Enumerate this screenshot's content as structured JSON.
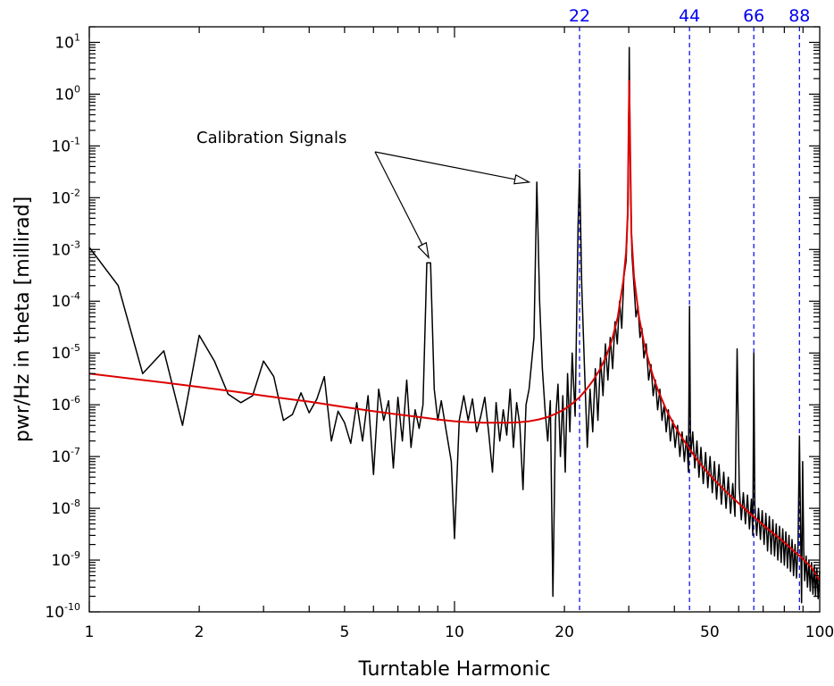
{
  "chart_data": {
    "type": "line",
    "xlabel": "Turntable Harmonic",
    "ylabel": "pwr/Hz in theta [millirad]",
    "x_scale": "log",
    "y_scale": "log",
    "xlim": [
      1,
      100
    ],
    "ylim": [
      1e-10,
      20
    ],
    "x_ticks": [
      {
        "value": 1,
        "label": "1"
      },
      {
        "value": 2,
        "label": "2"
      },
      {
        "value": 5,
        "label": "5"
      },
      {
        "value": 10,
        "label": "10"
      },
      {
        "value": 20,
        "label": "20"
      },
      {
        "value": 50,
        "label": "50"
      },
      {
        "value": 100,
        "label": "100"
      }
    ],
    "y_ticks": [
      {
        "value": 1e-10,
        "base": "10",
        "exp": "-10"
      },
      {
        "value": 1e-09,
        "base": "10",
        "exp": "-9"
      },
      {
        "value": 1e-08,
        "base": "10",
        "exp": "-8"
      },
      {
        "value": 1e-07,
        "base": "10",
        "exp": "-7"
      },
      {
        "value": 1e-06,
        "base": "10",
        "exp": "-6"
      },
      {
        "value": 1e-05,
        "base": "10",
        "exp": "-5"
      },
      {
        "value": 0.0001,
        "base": "10",
        "exp": "-4"
      },
      {
        "value": 0.001,
        "base": "10",
        "exp": "-3"
      },
      {
        "value": 0.01,
        "base": "10",
        "exp": "-2"
      },
      {
        "value": 0.1,
        "base": "10",
        "exp": "-1"
      },
      {
        "value": 1,
        "base": "10",
        "exp": "0"
      },
      {
        "value": 10,
        "base": "10",
        "exp": "1"
      }
    ],
    "vertical_lines": [
      {
        "x": 22,
        "label": "22",
        "color": "#0000ee"
      },
      {
        "x": 44,
        "label": "44",
        "color": "#0000ee"
      },
      {
        "x": 66,
        "label": "66",
        "color": "#0000ee"
      },
      {
        "x": 88,
        "label": "88",
        "color": "#0000ee"
      }
    ],
    "annotation": {
      "text": "Calibration Signals",
      "arrows_to": [
        {
          "x": 8.5,
          "y": 0.0007
        },
        {
          "x": 16,
          "y": 0.02
        }
      ]
    },
    "series": [
      {
        "color": "#000000",
        "style": "measured",
        "points": [
          [
            1.0,
            0.0011
          ],
          [
            1.2,
            0.0002
          ],
          [
            1.4,
            4e-06
          ],
          [
            1.6,
            1.1e-05
          ],
          [
            1.8,
            4e-07
          ],
          [
            2.0,
            2.2e-05
          ],
          [
            2.2,
            7e-06
          ],
          [
            2.4,
            1.6e-06
          ],
          [
            2.6,
            1.1e-06
          ],
          [
            2.8,
            1.5e-06
          ],
          [
            3.0,
            7e-06
          ],
          [
            3.2,
            3.5e-06
          ],
          [
            3.4,
            5e-07
          ],
          [
            3.6,
            6.5e-07
          ],
          [
            3.8,
            1.7e-06
          ],
          [
            4.0,
            7e-07
          ],
          [
            4.2,
            1.3e-06
          ],
          [
            4.4,
            3.5e-06
          ],
          [
            4.6,
            2e-07
          ],
          [
            4.8,
            7.5e-07
          ],
          [
            5.0,
            4.5e-07
          ],
          [
            5.2,
            1.8e-07
          ],
          [
            5.4,
            1.1e-06
          ],
          [
            5.6,
            2e-07
          ],
          [
            5.8,
            1.5e-06
          ],
          [
            6.0,
            4.5e-08
          ],
          [
            6.2,
            2e-06
          ],
          [
            6.4,
            5e-07
          ],
          [
            6.6,
            1.2e-06
          ],
          [
            6.8,
            6e-08
          ],
          [
            7.0,
            1.4e-06
          ],
          [
            7.2,
            2e-07
          ],
          [
            7.4,
            3e-06
          ],
          [
            7.6,
            1.5e-07
          ],
          [
            7.8,
            8e-07
          ],
          [
            8.0,
            3.5e-07
          ],
          [
            8.2,
            1e-06
          ],
          [
            8.4,
            0.00055
          ],
          [
            8.6,
            0.00055
          ],
          [
            8.8,
            2e-06
          ],
          [
            9.0,
            5e-07
          ],
          [
            9.2,
            1.2e-06
          ],
          [
            9.5,
            3e-07
          ],
          [
            9.8,
            8e-08
          ],
          [
            10.0,
            2.6e-09
          ],
          [
            10.3,
            5e-07
          ],
          [
            10.6,
            1.5e-06
          ],
          [
            10.9,
            5e-07
          ],
          [
            11.2,
            1.3e-06
          ],
          [
            11.5,
            3e-07
          ],
          [
            11.8,
            6e-07
          ],
          [
            12.1,
            1.4e-06
          ],
          [
            12.4,
            3e-07
          ],
          [
            12.7,
            5e-08
          ],
          [
            13.0,
            1.1e-06
          ],
          [
            13.3,
            2e-07
          ],
          [
            13.6,
            8e-07
          ],
          [
            13.9,
            2.6e-07
          ],
          [
            14.2,
            2e-06
          ],
          [
            14.5,
            1.5e-07
          ],
          [
            14.8,
            1.1e-06
          ],
          [
            15.1,
            4e-07
          ],
          [
            15.4,
            2.3e-08
          ],
          [
            15.7,
            1e-06
          ],
          [
            16.0,
            2e-06
          ],
          [
            16.2,
            5e-06
          ],
          [
            16.5,
            2e-05
          ],
          [
            16.8,
            0.02
          ],
          [
            17.1,
            0.0001
          ],
          [
            17.4,
            5e-06
          ],
          [
            17.7,
            8e-07
          ],
          [
            18.0,
            2e-07
          ],
          [
            18.3,
            1.2e-06
          ],
          [
            18.6,
            2e-10
          ],
          [
            18.9,
            5e-07
          ],
          [
            19.2,
            2.5e-06
          ],
          [
            19.5,
            1e-07
          ],
          [
            19.8,
            1.5e-06
          ],
          [
            20.1,
            5e-08
          ],
          [
            20.4,
            4e-06
          ],
          [
            20.7,
            3e-07
          ],
          [
            21.0,
            1e-05
          ],
          [
            21.4,
            6e-07
          ],
          [
            21.8,
            0.003
          ],
          [
            22.0,
            0.035
          ],
          [
            22.3,
            0.0002
          ],
          [
            22.7,
            5e-06
          ],
          [
            23.1,
            1.5e-07
          ],
          [
            23.5,
            2e-06
          ],
          [
            23.9,
            3e-07
          ],
          [
            24.3,
            5e-06
          ],
          [
            24.7,
            5e-07
          ],
          [
            25.1,
            8e-06
          ],
          [
            25.5,
            1.5e-06
          ],
          [
            25.9,
            1.5e-05
          ],
          [
            26.3,
            3e-06
          ],
          [
            26.7,
            2e-05
          ],
          [
            27.1,
            5e-06
          ],
          [
            27.5,
            4e-05
          ],
          [
            27.9,
            1.5e-05
          ],
          [
            28.3,
            0.0001
          ],
          [
            28.7,
            3e-05
          ],
          [
            29.1,
            0.0003
          ],
          [
            29.5,
            0.0006
          ],
          [
            29.9,
            0.008
          ],
          [
            30.1,
            8.0
          ],
          [
            30.3,
            0.03
          ],
          [
            30.6,
            0.0008
          ],
          [
            31.0,
            0.0002
          ],
          [
            31.4,
            5e-05
          ],
          [
            31.8,
            8e-05
          ],
          [
            32.2,
            2e-05
          ],
          [
            32.6,
            3e-05
          ],
          [
            33.0,
            8e-06
          ],
          [
            33.5,
            1.5e-05
          ],
          [
            34.0,
            3e-06
          ],
          [
            34.5,
            6e-06
          ],
          [
            35.0,
            1.5e-06
          ],
          [
            35.5,
            3e-06
          ],
          [
            36.0,
            8e-07
          ],
          [
            36.5,
            2e-06
          ],
          [
            37.0,
            5e-07
          ],
          [
            37.5,
            1e-06
          ],
          [
            38.0,
            3e-07
          ],
          [
            38.5,
            8e-07
          ],
          [
            39.0,
            2e-07
          ],
          [
            39.6,
            5e-07
          ],
          [
            40.2,
            1.5e-07
          ],
          [
            40.8,
            4e-07
          ],
          [
            41.4,
            1e-07
          ],
          [
            42.0,
            3e-07
          ],
          [
            42.6,
            8e-08
          ],
          [
            43.2,
            2.5e-07
          ],
          [
            43.7,
            5e-08
          ],
          [
            44.0,
            8e-05
          ],
          [
            44.3,
            1e-07
          ],
          [
            44.9,
            3e-07
          ],
          [
            45.5,
            6e-08
          ],
          [
            46.1,
            2e-07
          ],
          [
            46.7,
            4e-08
          ],
          [
            47.3,
            1.5e-07
          ],
          [
            48.0,
            3e-08
          ],
          [
            48.7,
            1.2e-07
          ],
          [
            49.4,
            2.5e-08
          ],
          [
            50.1,
            1e-07
          ],
          [
            50.8,
            2e-08
          ],
          [
            51.5,
            8e-08
          ],
          [
            52.2,
            1.5e-08
          ],
          [
            53.0,
            7e-08
          ],
          [
            53.8,
            1.2e-08
          ],
          [
            54.6,
            5e-08
          ],
          [
            55.4,
            1e-08
          ],
          [
            56.2,
            4e-08
          ],
          [
            57.0,
            8e-09
          ],
          [
            57.8,
            3e-08
          ],
          [
            58.6,
            7e-09
          ],
          [
            59.4,
            1.2e-05
          ],
          [
            60.2,
            2.5e-08
          ],
          [
            61.0,
            6e-09
          ],
          [
            61.8,
            2e-08
          ],
          [
            62.6,
            5e-09
          ],
          [
            63.4,
            1.8e-08
          ],
          [
            64.2,
            4e-09
          ],
          [
            65.0,
            1.5e-08
          ],
          [
            65.6,
            3e-09
          ],
          [
            66.0,
            1e-05
          ],
          [
            66.4,
            1.2e-08
          ],
          [
            67.2,
            3e-09
          ],
          [
            68.0,
            1e-08
          ],
          [
            68.8,
            2.5e-09
          ],
          [
            69.6,
            9e-09
          ],
          [
            70.4,
            2e-09
          ],
          [
            71.2,
            8e-09
          ],
          [
            72.0,
            1.5e-09
          ],
          [
            72.8,
            7e-09
          ],
          [
            73.6,
            1.3e-09
          ],
          [
            74.4,
            6e-09
          ],
          [
            75.2,
            1.2e-09
          ],
          [
            76.0,
            5e-09
          ],
          [
            76.8,
            1e-09
          ],
          [
            77.6,
            4.5e-09
          ],
          [
            78.4,
            9e-10
          ],
          [
            79.2,
            4e-09
          ],
          [
            80.0,
            8e-10
          ],
          [
            80.8,
            3.5e-09
          ],
          [
            81.6,
            7e-10
          ],
          [
            82.4,
            3e-09
          ],
          [
            83.2,
            6e-10
          ],
          [
            84.0,
            2.5e-09
          ],
          [
            84.8,
            5e-10
          ],
          [
            85.6,
            2e-09
          ],
          [
            86.4,
            4.5e-10
          ],
          [
            87.2,
            1.8e-09
          ],
          [
            88.0,
            2.5e-07
          ],
          [
            88.6,
            5e-09
          ],
          [
            89.2,
            1.5e-10
          ],
          [
            89.8,
            8e-08
          ],
          [
            90.4,
            1.5e-09
          ],
          [
            91.0,
            4e-10
          ],
          [
            91.8,
            1.2e-09
          ],
          [
            92.6,
            3e-10
          ],
          [
            93.4,
            1e-09
          ],
          [
            94.2,
            2.5e-10
          ],
          [
            95.0,
            9e-10
          ],
          [
            95.8,
            2.2e-10
          ],
          [
            96.6,
            8e-10
          ],
          [
            97.4,
            2e-10
          ],
          [
            98.2,
            7e-10
          ],
          [
            99.0,
            1.8e-10
          ],
          [
            100.0,
            6e-10
          ]
        ]
      },
      {
        "color": "#dd0000",
        "style": "fit",
        "points": [
          [
            1.0,
            4e-06
          ],
          [
            1.3,
            3.2e-06
          ],
          [
            1.6,
            2.7e-06
          ],
          [
            2.0,
            2.2e-06
          ],
          [
            2.5,
            1.8e-06
          ],
          [
            3.0,
            1.5e-06
          ],
          [
            3.5,
            1.3e-06
          ],
          [
            4.0,
            1.15e-06
          ],
          [
            5.0,
            9e-07
          ],
          [
            6.0,
            7.5e-07
          ],
          [
            7.0,
            6.5e-07
          ],
          [
            8.0,
            5.8e-07
          ],
          [
            9.0,
            5.2e-07
          ],
          [
            10.0,
            4.8e-07
          ],
          [
            11.0,
            4.6e-07
          ],
          [
            12.0,
            4.5e-07
          ],
          [
            13.0,
            4.5e-07
          ],
          [
            14.0,
            4.5e-07
          ],
          [
            15.0,
            4.6e-07
          ],
          [
            16.0,
            4.8e-07
          ],
          [
            17.0,
            5.2e-07
          ],
          [
            18.0,
            5.8e-07
          ],
          [
            19.0,
            6.8e-07
          ],
          [
            20.0,
            8.2e-07
          ],
          [
            21.0,
            1.05e-06
          ],
          [
            22.0,
            1.4e-06
          ],
          [
            23.0,
            2e-06
          ],
          [
            24.0,
            3e-06
          ],
          [
            25.0,
            4.8e-06
          ],
          [
            26.0,
            8.5e-06
          ],
          [
            27.0,
            1.8e-05
          ],
          [
            28.0,
            5e-05
          ],
          [
            29.0,
            0.00025
          ],
          [
            29.5,
            0.0009
          ],
          [
            29.8,
            0.005
          ],
          [
            30.0,
            0.3
          ],
          [
            30.1,
            1.8
          ],
          [
            30.2,
            0.3
          ],
          [
            30.5,
            0.002
          ],
          [
            31.0,
            0.0003
          ],
          [
            32.0,
            5e-05
          ],
          [
            33.0,
            1.6e-05
          ],
          [
            34.0,
            7e-06
          ],
          [
            35.0,
            3.5e-06
          ],
          [
            36.0,
            2e-06
          ],
          [
            38.0,
            8e-07
          ],
          [
            40.0,
            4e-07
          ],
          [
            42.0,
            2.3e-07
          ],
          [
            44.0,
            1.4e-07
          ],
          [
            46.0,
            9e-08
          ],
          [
            48.0,
            6.2e-08
          ],
          [
            50.0,
            4.4e-08
          ],
          [
            55.0,
            2.2e-08
          ],
          [
            60.0,
            1.25e-08
          ],
          [
            65.0,
            7.5e-09
          ],
          [
            70.0,
            4.8e-09
          ],
          [
            75.0,
            3.2e-09
          ],
          [
            80.0,
            2.2e-09
          ],
          [
            85.0,
            1.5e-09
          ],
          [
            90.0,
            1.05e-09
          ],
          [
            95.0,
            7.2e-10
          ],
          [
            100.0,
            4e-10
          ]
        ]
      }
    ]
  }
}
